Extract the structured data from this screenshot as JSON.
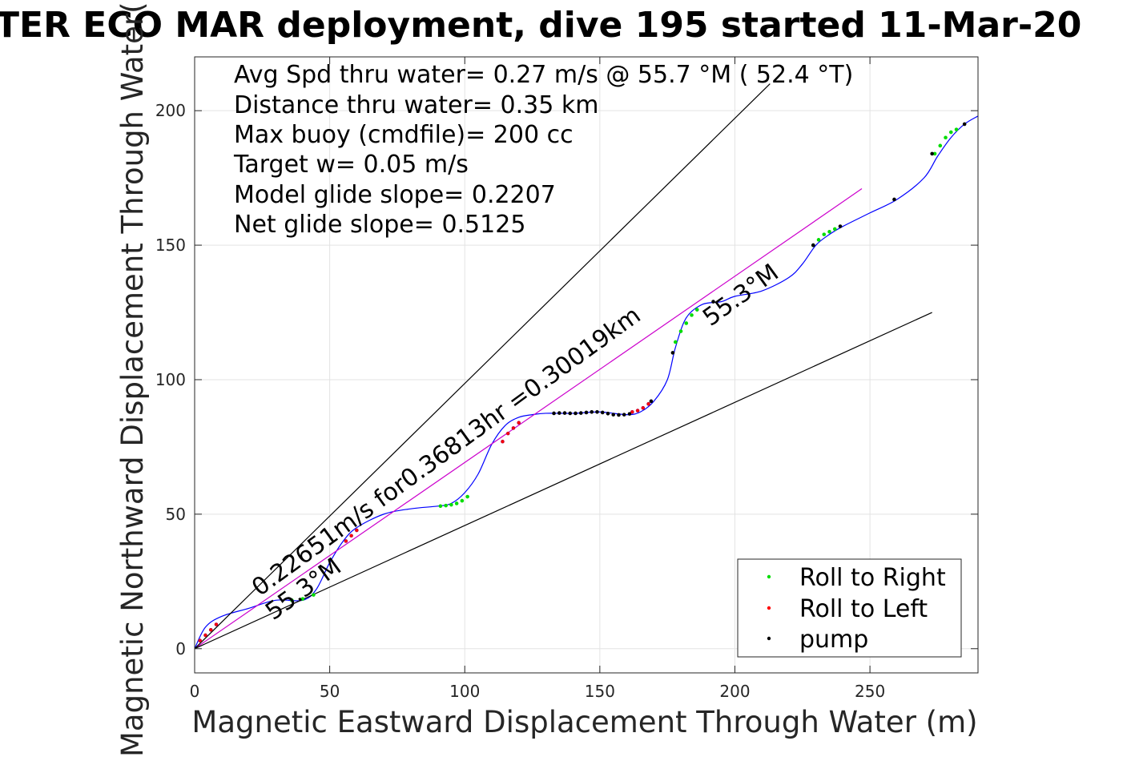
{
  "chart_data": {
    "type": "line",
    "title": "TER ECO MAR deployment, dive 195 started 11-Mar-20",
    "xlabel": "Magnetic Eastward Displacement Through Water (m)",
    "ylabel": "Magnetic Northward Displacement Through Water(",
    "xlim": [
      0,
      290
    ],
    "ylim": [
      -9,
      220
    ],
    "xticks": [
      0,
      50,
      100,
      150,
      200,
      250
    ],
    "yticks": [
      0,
      50,
      100,
      150,
      200
    ],
    "xtick_labels": [
      "0",
      "50",
      "100",
      "150",
      "200",
      "250"
    ],
    "ytick_labels": [
      "0",
      "50",
      "100",
      "150",
      "200"
    ],
    "grid": true,
    "legend_position": "bottom-right",
    "stats": [
      "Avg Spd thru water=  0.27 m/s @  55.7 °M ( 52.4 °T)",
      "Distance thru water=  0.35 km",
      "Max buoy (cmdfile)= 200 cc",
      "Target w= 0.05 m/s",
      "Model glide slope= 0.2207",
      "Net glide slope= 0.5125"
    ],
    "annotations": {
      "glide_label": "0.22651m/s for0.36813hr =0.30019km",
      "heading_label_1": "55.3°M",
      "heading_label_2": "55.3°M"
    },
    "series": [
      {
        "name": "track",
        "color": "#0000ff",
        "x": [
          0,
          4,
          10,
          20,
          30,
          40,
          45,
          50,
          55,
          60,
          70,
          80,
          90,
          95,
          100,
          105,
          110,
          115,
          120,
          125,
          130,
          140,
          150,
          160,
          165,
          170,
          175,
          178,
          182,
          188,
          195,
          200,
          210,
          220,
          225,
          230,
          235,
          240,
          250,
          260,
          270,
          275,
          280,
          285,
          290
        ],
        "y": [
          0,
          8,
          12,
          15,
          18,
          18,
          22,
          32,
          40,
          45,
          50,
          52,
          53,
          54,
          58,
          65,
          76,
          83,
          86,
          87,
          87.5,
          87.5,
          88,
          87,
          88,
          92,
          100,
          112,
          123,
          128,
          129,
          131,
          133,
          138,
          143,
          150,
          154,
          157,
          162,
          167,
          175,
          183,
          190,
          195,
          198
        ]
      },
      {
        "name": "glide",
        "color": "#cc00cc",
        "x": [
          0,
          247
        ],
        "y": [
          0,
          171
        ]
      },
      {
        "name": "upper-bound",
        "color": "#000000",
        "x": [
          0,
          213
        ],
        "y": [
          0,
          210
        ]
      },
      {
        "name": "lower-bound",
        "color": "#000000",
        "x": [
          0,
          273
        ],
        "y": [
          0,
          125
        ]
      }
    ],
    "markers": [
      {
        "name": "Roll to Right",
        "color": "#00dd00",
        "x": [
          36,
          40,
          44,
          91,
          93,
          95,
          97,
          99,
          101,
          178,
          180,
          182,
          184,
          186,
          229,
          231,
          233,
          235,
          237,
          274,
          276,
          278,
          280,
          282
        ],
        "y": [
          18,
          18.5,
          20,
          53,
          53.2,
          53.5,
          54,
          55,
          56.5,
          114,
          118,
          121,
          124,
          126,
          150,
          152,
          154,
          155,
          156,
          184,
          187,
          190,
          192,
          193
        ]
      },
      {
        "name": "Roll to Left",
        "color": "#ff0000",
        "x": [
          2,
          4,
          6,
          8,
          56,
          58,
          60,
          114,
          116,
          118,
          120,
          162,
          164,
          166,
          168
        ],
        "y": [
          3,
          5,
          7,
          9,
          40,
          42,
          44,
          77,
          80,
          82,
          84,
          88,
          88.5,
          89.5,
          91
        ],
        "edge": "#aa0044"
      },
      {
        "name": "pump",
        "color": "#000000",
        "x": [
          133,
          135,
          137,
          139,
          141,
          143,
          145,
          147,
          149,
          151,
          153,
          155,
          157,
          159,
          161,
          169,
          177,
          192,
          229,
          239,
          259,
          273,
          285
        ],
        "y": [
          87.5,
          87.6,
          87.6,
          87.5,
          87.5,
          87.6,
          87.8,
          88,
          88,
          87.8,
          87.4,
          87,
          86.9,
          87,
          87.3,
          92,
          110,
          129,
          150,
          157,
          167,
          184,
          195
        ]
      }
    ]
  }
}
